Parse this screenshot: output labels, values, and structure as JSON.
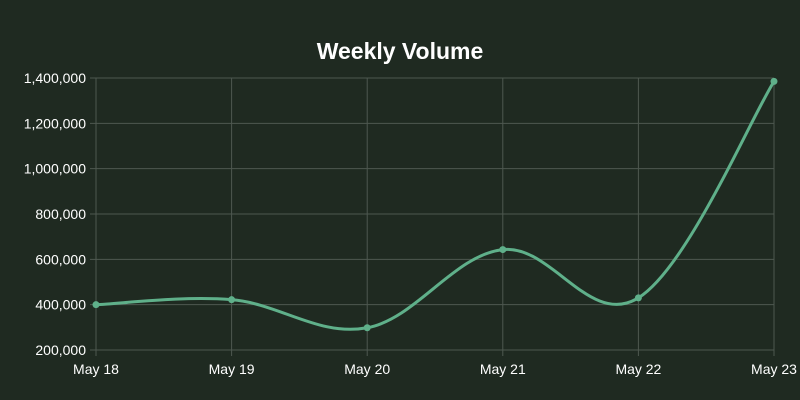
{
  "chart_data": {
    "type": "line",
    "title": "Weekly Volume",
    "xlabel": "",
    "ylabel": "",
    "categories": [
      "May 18",
      "May 19",
      "May 20",
      "May 21",
      "May 22",
      "May 23"
    ],
    "series": [
      {
        "values": [
          400000,
          422000,
          298000,
          643000,
          430000,
          1385000
        ]
      }
    ],
    "ylim": [
      200000,
      1400000
    ],
    "yticks": [
      "200,000",
      "400,000",
      "600,000",
      "800,000",
      "1,000,000",
      "1,200,000",
      "1,400,000"
    ],
    "ytick_values": [
      200000,
      400000,
      600000,
      800000,
      1000000,
      1200000,
      1400000
    ],
    "grid": true,
    "legend": "none",
    "colors": {
      "background": "#1f2a21",
      "line": "#5fb08a",
      "grid": "#4e5850",
      "text": "#ffffff"
    }
  }
}
